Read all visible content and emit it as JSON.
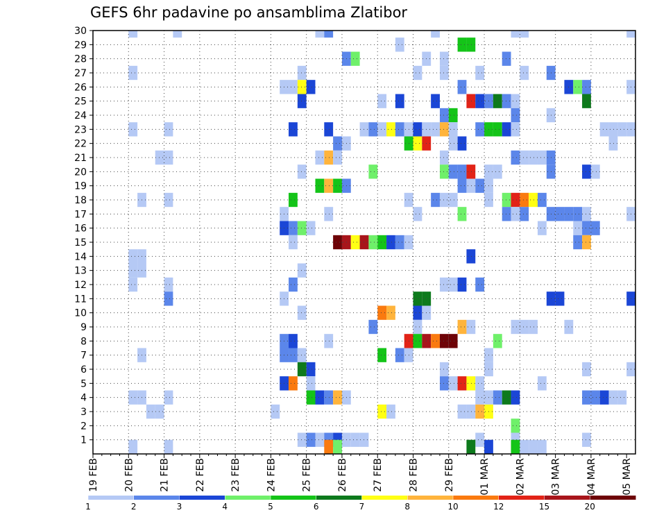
{
  "chart_data": {
    "type": "heatmap",
    "title": "GEFS 6hr padavine po ansamblima Zlatibor",
    "xlabel": "",
    "ylabel": "",
    "x_tick_labels": [
      "19 FEB",
      "20 FEB",
      "21 FEB",
      "22 FEB",
      "23 FEB",
      "24 FEB",
      "25 FEB",
      "26 FEB",
      "27 FEB",
      "28 FEB",
      "29 FEB",
      "01 MAR",
      "02 MAR",
      "03 MAR",
      "04 MAR",
      "05 MAR"
    ],
    "y_tick_labels": [
      "1",
      "2",
      "3",
      "4",
      "5",
      "6",
      "7",
      "8",
      "9",
      "10",
      "11",
      "12",
      "13",
      "14",
      "15",
      "16",
      "17",
      "18",
      "19",
      "20",
      "21",
      "22",
      "23",
      "24",
      "25",
      "26",
      "27",
      "28",
      "29",
      "30"
    ],
    "x_units": "6-hour steps since 19 FEB 00z",
    "xlim": [
      0,
      61
    ],
    "ylim": [
      0,
      30
    ],
    "grid": true,
    "colorbar": {
      "labels": [
        "1",
        "2",
        "3",
        "4",
        "5",
        "6",
        "7",
        "8",
        "10",
        "12",
        "15",
        "20"
      ],
      "colors": [
        "#b5c9f5",
        "#5b86ea",
        "#1b46d6",
        "#6ff06a",
        "#14c418",
        "#0d7a1c",
        "#ffff14",
        "#ffb43c",
        "#fa7a0f",
        "#e22317",
        "#a8151b",
        "#6e0307"
      ]
    },
    "cells": [
      [
        4.5,
        30,
        0
      ],
      [
        9.5,
        30,
        0
      ],
      [
        25.5,
        30,
        0
      ],
      [
        26.5,
        30,
        1
      ],
      [
        38.5,
        30,
        0
      ],
      [
        47.5,
        30,
        0
      ],
      [
        48.5,
        30,
        0
      ],
      [
        60.5,
        30,
        0
      ],
      [
        34.5,
        29,
        0
      ],
      [
        41.5,
        29,
        4
      ],
      [
        42.5,
        29,
        4
      ],
      [
        28.5,
        28,
        1
      ],
      [
        29.5,
        28,
        3
      ],
      [
        37.5,
        28,
        0
      ],
      [
        39.5,
        28,
        0
      ],
      [
        46.5,
        28,
        1
      ],
      [
        61.5,
        28,
        1
      ],
      [
        4.5,
        27,
        0
      ],
      [
        23.5,
        27,
        0
      ],
      [
        36.5,
        27,
        0
      ],
      [
        39.5,
        27,
        0
      ],
      [
        43.5,
        27,
        0
      ],
      [
        48.5,
        27,
        0
      ],
      [
        51.5,
        27,
        1
      ],
      [
        21.5,
        26,
        0
      ],
      [
        22.5,
        26,
        0
      ],
      [
        23.5,
        26,
        6
      ],
      [
        24.5,
        26,
        2
      ],
      [
        41.5,
        26,
        1
      ],
      [
        53.5,
        26,
        2
      ],
      [
        54.5,
        26,
        3
      ],
      [
        55.5,
        26,
        1
      ],
      [
        60.5,
        26,
        0
      ],
      [
        23.5,
        25,
        2
      ],
      [
        32.5,
        25,
        0
      ],
      [
        34.5,
        25,
        2
      ],
      [
        38.5,
        25,
        2
      ],
      [
        42.5,
        25,
        9
      ],
      [
        43.5,
        25,
        2
      ],
      [
        44.5,
        25,
        1
      ],
      [
        45.5,
        25,
        5
      ],
      [
        46.5,
        25,
        1
      ],
      [
        47.5,
        25,
        0
      ],
      [
        55.5,
        25,
        5
      ],
      [
        39.5,
        24,
        1
      ],
      [
        40.5,
        24,
        4
      ],
      [
        47.5,
        24,
        1
      ],
      [
        51.5,
        24,
        0
      ],
      [
        4.5,
        23,
        0
      ],
      [
        8.5,
        23,
        0
      ],
      [
        22.5,
        23,
        2
      ],
      [
        26.5,
        23,
        2
      ],
      [
        30.5,
        23,
        0
      ],
      [
        31.5,
        23,
        1
      ],
      [
        32.5,
        23,
        0
      ],
      [
        33.5,
        23,
        6
      ],
      [
        34.5,
        23,
        1
      ],
      [
        35.5,
        23,
        0
      ],
      [
        36.5,
        23,
        2
      ],
      [
        37.5,
        23,
        0
      ],
      [
        38.5,
        23,
        0
      ],
      [
        39.5,
        23,
        7
      ],
      [
        40.5,
        23,
        0
      ],
      [
        43.5,
        23,
        1
      ],
      [
        44.5,
        23,
        4
      ],
      [
        45.5,
        23,
        4
      ],
      [
        46.5,
        23,
        2
      ],
      [
        47.5,
        23,
        0
      ],
      [
        57.5,
        23,
        0
      ],
      [
        58.5,
        23,
        0
      ],
      [
        59.5,
        23,
        0
      ],
      [
        60.5,
        23,
        0
      ],
      [
        61.5,
        23,
        1
      ],
      [
        27.5,
        22,
        1
      ],
      [
        28.5,
        22,
        0
      ],
      [
        35.5,
        22,
        4
      ],
      [
        36.5,
        22,
        6
      ],
      [
        37.5,
        22,
        9
      ],
      [
        40.5,
        22,
        0
      ],
      [
        41.5,
        22,
        2
      ],
      [
        58.5,
        22,
        0
      ],
      [
        7.5,
        21,
        0
      ],
      [
        8.5,
        21,
        0
      ],
      [
        25.5,
        21,
        0
      ],
      [
        26.5,
        21,
        7
      ],
      [
        27.5,
        21,
        0
      ],
      [
        39.5,
        21,
        0
      ],
      [
        47.5,
        21,
        1
      ],
      [
        48.5,
        21,
        0
      ],
      [
        49.5,
        21,
        0
      ],
      [
        50.5,
        21,
        0
      ],
      [
        51.5,
        21,
        1
      ],
      [
        23.5,
        20,
        0
      ],
      [
        31.5,
        20,
        3
      ],
      [
        39.5,
        20,
        3
      ],
      [
        40.5,
        20,
        1
      ],
      [
        41.5,
        20,
        1
      ],
      [
        42.5,
        20,
        9
      ],
      [
        44.5,
        20,
        0
      ],
      [
        45.5,
        20,
        0
      ],
      [
        51.5,
        20,
        1
      ],
      [
        55.5,
        20,
        2
      ],
      [
        56.5,
        20,
        0
      ],
      [
        25.5,
        19,
        4
      ],
      [
        26.5,
        19,
        7
      ],
      [
        27.5,
        19,
        4
      ],
      [
        28.5,
        19,
        1
      ],
      [
        41.5,
        19,
        1
      ],
      [
        42.5,
        19,
        0
      ],
      [
        43.5,
        19,
        1
      ],
      [
        44.5,
        19,
        0
      ],
      [
        5.5,
        18,
        0
      ],
      [
        8.5,
        18,
        0
      ],
      [
        22.5,
        18,
        4
      ],
      [
        35.5,
        18,
        0
      ],
      [
        38.5,
        18,
        1
      ],
      [
        39.5,
        18,
        0
      ],
      [
        40.5,
        18,
        0
      ],
      [
        44.5,
        18,
        0
      ],
      [
        46.5,
        18,
        3
      ],
      [
        47.5,
        18,
        9
      ],
      [
        48.5,
        18,
        8
      ],
      [
        49.5,
        18,
        6
      ],
      [
        50.5,
        18,
        1
      ],
      [
        21.5,
        17,
        0
      ],
      [
        26.5,
        17,
        0
      ],
      [
        36.5,
        17,
        0
      ],
      [
        41.5,
        17,
        3
      ],
      [
        46.5,
        17,
        1
      ],
      [
        47.5,
        17,
        0
      ],
      [
        48.5,
        17,
        1
      ],
      [
        51.5,
        17,
        1
      ],
      [
        52.5,
        17,
        1
      ],
      [
        53.5,
        17,
        1
      ],
      [
        54.5,
        17,
        1
      ],
      [
        55.5,
        17,
        0
      ],
      [
        60.5,
        17,
        0
      ],
      [
        61.5,
        17,
        1
      ],
      [
        21.5,
        16,
        2
      ],
      [
        22.5,
        16,
        1
      ],
      [
        23.5,
        16,
        3
      ],
      [
        24.5,
        16,
        0
      ],
      [
        50.5,
        16,
        0
      ],
      [
        54.5,
        16,
        0
      ],
      [
        55.5,
        16,
        1
      ],
      [
        56.5,
        16,
        1
      ],
      [
        22.5,
        15,
        0
      ],
      [
        27.5,
        15,
        11
      ],
      [
        28.5,
        15,
        10
      ],
      [
        29.5,
        15,
        6
      ],
      [
        30.5,
        15,
        10
      ],
      [
        31.5,
        15,
        3
      ],
      [
        32.5,
        15,
        4
      ],
      [
        33.5,
        15,
        2
      ],
      [
        34.5,
        15,
        1
      ],
      [
        35.5,
        15,
        0
      ],
      [
        54.5,
        15,
        1
      ],
      [
        55.5,
        15,
        7
      ],
      [
        4.5,
        14,
        0
      ],
      [
        5.5,
        14,
        0
      ],
      [
        42.5,
        14,
        2
      ],
      [
        4.5,
        13,
        0
      ],
      [
        5.5,
        13,
        0
      ],
      [
        23.5,
        13,
        0
      ],
      [
        4.5,
        12,
        0
      ],
      [
        8.5,
        12,
        0
      ],
      [
        22.5,
        12,
        1
      ],
      [
        39.5,
        12,
        0
      ],
      [
        40.5,
        12,
        0
      ],
      [
        41.5,
        12,
        2
      ],
      [
        43.5,
        12,
        1
      ],
      [
        8.5,
        11,
        1
      ],
      [
        21.5,
        11,
        0
      ],
      [
        36.5,
        11,
        5
      ],
      [
        37.5,
        11,
        5
      ],
      [
        51.5,
        11,
        2
      ],
      [
        52.5,
        11,
        2
      ],
      [
        60.5,
        11,
        2
      ],
      [
        61.5,
        11,
        1
      ],
      [
        23.5,
        10,
        0
      ],
      [
        32.5,
        10,
        8
      ],
      [
        33.5,
        10,
        7
      ],
      [
        36.5,
        10,
        2
      ],
      [
        37.5,
        10,
        0
      ],
      [
        31.5,
        9,
        1
      ],
      [
        36.5,
        9,
        0
      ],
      [
        41.5,
        9,
        7
      ],
      [
        42.5,
        9,
        0
      ],
      [
        47.5,
        9,
        0
      ],
      [
        48.5,
        9,
        0
      ],
      [
        49.5,
        9,
        0
      ],
      [
        53.5,
        9,
        0
      ],
      [
        21.5,
        8,
        1
      ],
      [
        22.5,
        8,
        2
      ],
      [
        26.5,
        8,
        0
      ],
      [
        35.5,
        8,
        9
      ],
      [
        36.5,
        8,
        4
      ],
      [
        37.5,
        8,
        10
      ],
      [
        38.5,
        8,
        8
      ],
      [
        39.5,
        8,
        11
      ],
      [
        40.5,
        8,
        11
      ],
      [
        45.5,
        8,
        3
      ],
      [
        5.5,
        7,
        0
      ],
      [
        21.5,
        7,
        1
      ],
      [
        22.5,
        7,
        1
      ],
      [
        23.5,
        7,
        0
      ],
      [
        32.5,
        7,
        4
      ],
      [
        34.5,
        7,
        1
      ],
      [
        35.5,
        7,
        0
      ],
      [
        44.5,
        7,
        0
      ],
      [
        23.5,
        6,
        5
      ],
      [
        24.5,
        6,
        2
      ],
      [
        39.5,
        6,
        0
      ],
      [
        44.5,
        6,
        0
      ],
      [
        55.5,
        6,
        0
      ],
      [
        60.5,
        6,
        0
      ],
      [
        61.5,
        6,
        2
      ],
      [
        21.5,
        5,
        2
      ],
      [
        22.5,
        5,
        8
      ],
      [
        24.5,
        5,
        0
      ],
      [
        39.5,
        5,
        1
      ],
      [
        40.5,
        5,
        0
      ],
      [
        41.5,
        5,
        9
      ],
      [
        42.5,
        5,
        6
      ],
      [
        43.5,
        5,
        0
      ],
      [
        50.5,
        5,
        0
      ],
      [
        4.5,
        4,
        0
      ],
      [
        5.5,
        4,
        0
      ],
      [
        8.5,
        4,
        0
      ],
      [
        24.5,
        4,
        4
      ],
      [
        25.5,
        4,
        2
      ],
      [
        26.5,
        4,
        1
      ],
      [
        27.5,
        4,
        7
      ],
      [
        28.5,
        4,
        0
      ],
      [
        43.5,
        4,
        0
      ],
      [
        44.5,
        4,
        0
      ],
      [
        45.5,
        4,
        1
      ],
      [
        46.5,
        4,
        5
      ],
      [
        47.5,
        4,
        2
      ],
      [
        55.5,
        4,
        1
      ],
      [
        56.5,
        4,
        1
      ],
      [
        57.5,
        4,
        2
      ],
      [
        58.5,
        4,
        0
      ],
      [
        59.5,
        4,
        0
      ],
      [
        61.5,
        4,
        0
      ],
      [
        6.5,
        3,
        0
      ],
      [
        7.5,
        3,
        0
      ],
      [
        20.5,
        3,
        0
      ],
      [
        32.5,
        3,
        6
      ],
      [
        33.5,
        3,
        0
      ],
      [
        41.5,
        3,
        0
      ],
      [
        42.5,
        3,
        0
      ],
      [
        43.5,
        3,
        7
      ],
      [
        44.5,
        3,
        6
      ],
      [
        47.5,
        2,
        3
      ],
      [
        23.5,
        1,
        0
      ],
      [
        24.5,
        1,
        1
      ],
      [
        25.5,
        1,
        0
      ],
      [
        26.5,
        1,
        1
      ],
      [
        27.5,
        1,
        2
      ],
      [
        28.5,
        1,
        0
      ],
      [
        29.5,
        1,
        0
      ],
      [
        30.5,
        1,
        0
      ],
      [
        43.5,
        1,
        0
      ],
      [
        47.5,
        1,
        0
      ],
      [
        55.5,
        1,
        0
      ],
      [
        4.5,
        0.5,
        0
      ],
      [
        8.5,
        0.5,
        0
      ],
      [
        26.5,
        0.5,
        8
      ],
      [
        27.5,
        0.5,
        3
      ],
      [
        42.5,
        0.5,
        5
      ],
      [
        44.5,
        0.5,
        2
      ],
      [
        47.5,
        0.5,
        4
      ],
      [
        48.5,
        0.5,
        0
      ],
      [
        49.5,
        0.5,
        0
      ],
      [
        50.5,
        0.5,
        0
      ]
    ]
  }
}
